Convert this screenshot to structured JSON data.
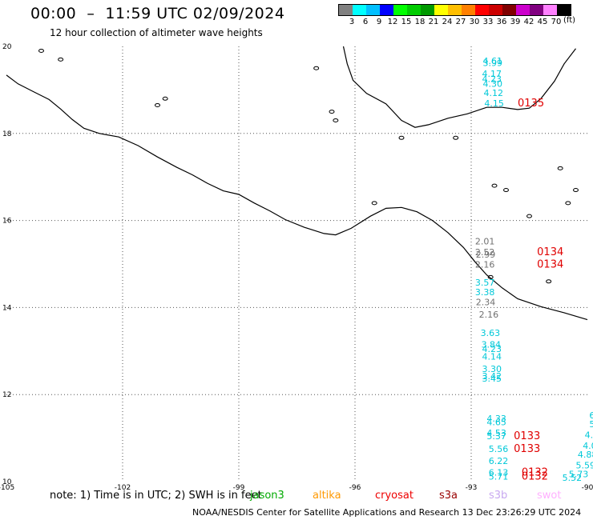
{
  "header": {
    "title": "00:00  –  11:59 UTC 02/09/2024",
    "subtitle": "12 hour collection of altimeter wave heights"
  },
  "legend": {
    "colors": [
      "#808080",
      "#00ffff",
      "#00bfff",
      "#0000ff",
      "#00ff00",
      "#00cc00",
      "#009900",
      "#ffff00",
      "#ffbf00",
      "#ff8000",
      "#ff0000",
      "#cc0000",
      "#800000",
      "#cc00cc",
      "#800080",
      "#ff80ff",
      "#000000"
    ],
    "labels": [
      "3",
      "6",
      "9",
      "12",
      "15",
      "18",
      "21",
      "24",
      "27",
      "30",
      "33",
      "36",
      "39",
      "42",
      "45",
      "70"
    ],
    "unit": "(ft)"
  },
  "map": {
    "lon_min": -105,
    "lon_max": -90,
    "lat_min": 10,
    "lat_max": 20,
    "lon_ticks": [
      "-105",
      "-102",
      "-99",
      "-96",
      "-93",
      "-90"
    ],
    "lat_ticks": [
      "20",
      "18",
      "16",
      "14",
      "12",
      "10"
    ],
    "coastline": [
      [
        -105,
        19.34
      ],
      [
        -104.7,
        19.14
      ],
      [
        -104.3,
        18.96
      ],
      [
        -103.9,
        18.78
      ],
      [
        -103.6,
        18.56
      ],
      [
        -103.3,
        18.32
      ],
      [
        -103.0,
        18.12
      ],
      [
        -102.6,
        18.0
      ],
      [
        -102.1,
        17.92
      ],
      [
        -101.6,
        17.72
      ],
      [
        -101.1,
        17.46
      ],
      [
        -100.6,
        17.22
      ],
      [
        -100.2,
        17.05
      ],
      [
        -99.8,
        16.85
      ],
      [
        -99.4,
        16.68
      ],
      [
        -99.0,
        16.6
      ],
      [
        -98.6,
        16.4
      ],
      [
        -98.2,
        16.22
      ],
      [
        -97.8,
        16.02
      ],
      [
        -97.3,
        15.84
      ],
      [
        -96.8,
        15.7
      ],
      [
        -96.5,
        15.67
      ],
      [
        -96.1,
        15.82
      ],
      [
        -95.6,
        16.1
      ],
      [
        -95.2,
        16.28
      ],
      [
        -94.8,
        16.3
      ],
      [
        -94.4,
        16.2
      ],
      [
        -94.0,
        16.0
      ],
      [
        -93.6,
        15.72
      ],
      [
        -93.2,
        15.38
      ],
      [
        -92.9,
        15.05
      ],
      [
        -92.6,
        14.75
      ],
      [
        -92.2,
        14.45
      ],
      [
        -91.8,
        14.2
      ],
      [
        -91.2,
        14.02
      ],
      [
        -90.6,
        13.88
      ],
      [
        -90.0,
        13.72
      ]
    ],
    "gulf_coast": [
      [
        -96.3,
        20.0
      ],
      [
        -96.2,
        19.6
      ],
      [
        -96.05,
        19.22
      ],
      [
        -95.7,
        18.92
      ],
      [
        -95.2,
        18.68
      ],
      [
        -94.8,
        18.3
      ],
      [
        -94.45,
        18.14
      ],
      [
        -94.1,
        18.2
      ],
      [
        -93.6,
        18.35
      ],
      [
        -93.1,
        18.45
      ],
      [
        -92.6,
        18.6
      ],
      [
        -92.2,
        18.6
      ],
      [
        -91.8,
        18.55
      ],
      [
        -91.5,
        18.58
      ],
      [
        -91.2,
        18.8
      ],
      [
        -90.85,
        19.2
      ],
      [
        -90.6,
        19.6
      ],
      [
        -90.3,
        19.95
      ]
    ],
    "islands": [
      [
        -91.5,
        16.1
      ],
      [
        -92.1,
        16.7
      ],
      [
        -92.4,
        16.8
      ],
      [
        -93.4,
        17.9
      ],
      [
        -95.5,
        16.4
      ],
      [
        -96.5,
        18.3
      ],
      [
        -100.9,
        18.8
      ],
      [
        -101.1,
        18.65
      ],
      [
        -92.5,
        14.7
      ],
      [
        -91.0,
        14.6
      ],
      [
        -90.3,
        16.7
      ],
      [
        -90.5,
        16.4
      ],
      [
        -90.7,
        17.2
      ],
      [
        -94.8,
        17.9
      ],
      [
        -96.6,
        18.5
      ],
      [
        -103.6,
        19.7
      ],
      [
        -104.1,
        19.9
      ],
      [
        -97.0,
        19.5
      ]
    ]
  },
  "measurements": [
    {
      "v": "4.61",
      "lon": -92.7,
      "lat": 19.6,
      "c": "#00c8d8"
    },
    {
      "v": "3.99",
      "lon": -92.7,
      "lat": 19.55,
      "c": "#00c8d8"
    },
    {
      "v": "4.17",
      "lon": -92.72,
      "lat": 19.3,
      "c": "#00c8d8"
    },
    {
      "v": "4.23",
      "lon": -92.72,
      "lat": 19.18,
      "c": "#00c8d8"
    },
    {
      "v": "4.30",
      "lon": -92.7,
      "lat": 19.07,
      "c": "#00c8d8"
    },
    {
      "v": "4.12",
      "lon": -92.68,
      "lat": 18.86,
      "c": "#00c8d8"
    },
    {
      "v": "4.15",
      "lon": -92.66,
      "lat": 18.62,
      "c": "#00c8d8"
    },
    {
      "v": "0135",
      "lon": -91.8,
      "lat": 18.62,
      "c": "#e00000"
    },
    {
      "v": "2.01",
      "lon": -92.9,
      "lat": 15.45,
      "c": "#707070"
    },
    {
      "v": "2.52",
      "lon": -92.9,
      "lat": 15.2,
      "c": "#707070"
    },
    {
      "v": "2.99",
      "lon": -92.88,
      "lat": 15.15,
      "c": "#707070"
    },
    {
      "v": "0134",
      "lon": -91.3,
      "lat": 15.2,
      "c": "#e00000"
    },
    {
      "v": "2.16",
      "lon": -92.9,
      "lat": 14.92,
      "c": "#707070"
    },
    {
      "v": "0134",
      "lon": -91.3,
      "lat": 14.92,
      "c": "#e00000"
    },
    {
      "v": "3.57",
      "lon": -92.9,
      "lat": 14.5,
      "c": "#00c8d8"
    },
    {
      "v": "3.38",
      "lon": -92.9,
      "lat": 14.28,
      "c": "#00c8d8"
    },
    {
      "v": "2.34",
      "lon": -92.88,
      "lat": 14.05,
      "c": "#707070"
    },
    {
      "v": "2.16",
      "lon": -92.8,
      "lat": 13.77,
      "c": "#707070"
    },
    {
      "v": "3.63",
      "lon": -92.76,
      "lat": 13.35,
      "c": "#00c8d8"
    },
    {
      "v": "3.84",
      "lon": -92.74,
      "lat": 13.08,
      "c": "#00c8d8"
    },
    {
      "v": "4.23",
      "lon": -92.72,
      "lat": 12.98,
      "c": "#00c8d8"
    },
    {
      "v": "4.14",
      "lon": -92.72,
      "lat": 12.8,
      "c": "#00c8d8"
    },
    {
      "v": "3.30",
      "lon": -92.72,
      "lat": 12.52,
      "c": "#00c8d8"
    },
    {
      "v": "3.42",
      "lon": -92.72,
      "lat": 12.35,
      "c": "#00c8d8"
    },
    {
      "v": "3.45",
      "lon": -92.72,
      "lat": 12.3,
      "c": "#00c8d8"
    },
    {
      "v": "4.33",
      "lon": -92.6,
      "lat": 11.38,
      "c": "#00c8d8"
    },
    {
      "v": "4.65",
      "lon": -92.6,
      "lat": 11.3,
      "c": "#00c8d8"
    },
    {
      "v": "4.53",
      "lon": -92.6,
      "lat": 11.05,
      "c": "#00c8d8"
    },
    {
      "v": "5.37",
      "lon": -92.6,
      "lat": 10.97,
      "c": "#00c8d8"
    },
    {
      "v": "0133",
      "lon": -91.9,
      "lat": 10.97,
      "c": "#e00000"
    },
    {
      "v": "5.56",
      "lon": -92.55,
      "lat": 10.68,
      "c": "#00c8d8"
    },
    {
      "v": "0133",
      "lon": -91.9,
      "lat": 10.68,
      "c": "#e00000"
    },
    {
      "v": "6.22",
      "lon": -92.55,
      "lat": 10.4,
      "c": "#00c8d8"
    },
    {
      "v": "6.13",
      "lon": -92.55,
      "lat": 10.14,
      "c": "#00c8d8"
    },
    {
      "v": "5.71",
      "lon": -92.55,
      "lat": 10.05,
      "c": "#00c8d8"
    },
    {
      "v": "0132",
      "lon": -91.7,
      "lat": 10.14,
      "c": "#e00000"
    },
    {
      "v": "0132",
      "lon": -91.7,
      "lat": 10.05,
      "c": "#e00000"
    },
    {
      "v": "6",
      "lon": -89.95,
      "lat": 11.45,
      "c": "#00c8d8"
    },
    {
      "v": "5.",
      "lon": -89.95,
      "lat": 11.25,
      "c": "#00c8d8"
    },
    {
      "v": "4.7",
      "lon": -90.07,
      "lat": 11.0,
      "c": "#00c8d8"
    },
    {
      "v": "4.0",
      "lon": -90.12,
      "lat": 10.75,
      "c": "#00c8d8"
    },
    {
      "v": "4.88",
      "lon": -90.25,
      "lat": 10.55,
      "c": "#00c8d8"
    },
    {
      "v": "5.59",
      "lon": -90.3,
      "lat": 10.3,
      "c": "#00c8d8"
    },
    {
      "v": "5.73",
      "lon": -90.48,
      "lat": 10.1,
      "c": "#00c8d8"
    },
    {
      "v": "5.52",
      "lon": -90.65,
      "lat": 10.02,
      "c": "#00c8d8"
    }
  ],
  "note": "note:  1) Time is in UTC;  2) SWH is in feet",
  "satellites": [
    {
      "name": "jason3",
      "color": "#00aa00"
    },
    {
      "name": "altika",
      "color": "#ff9900"
    },
    {
      "name": "cryosat",
      "color": "#ee0000"
    },
    {
      "name": "s3a",
      "color": "#990000"
    },
    {
      "name": "s3b",
      "color": "#c8a8f0"
    },
    {
      "name": "swot",
      "color": "#ffb0ff"
    }
  ],
  "footer": "NOAA/NESDIS Center for Satellite Applications and Research    13 Dec 23:26:29 UTC 2024"
}
